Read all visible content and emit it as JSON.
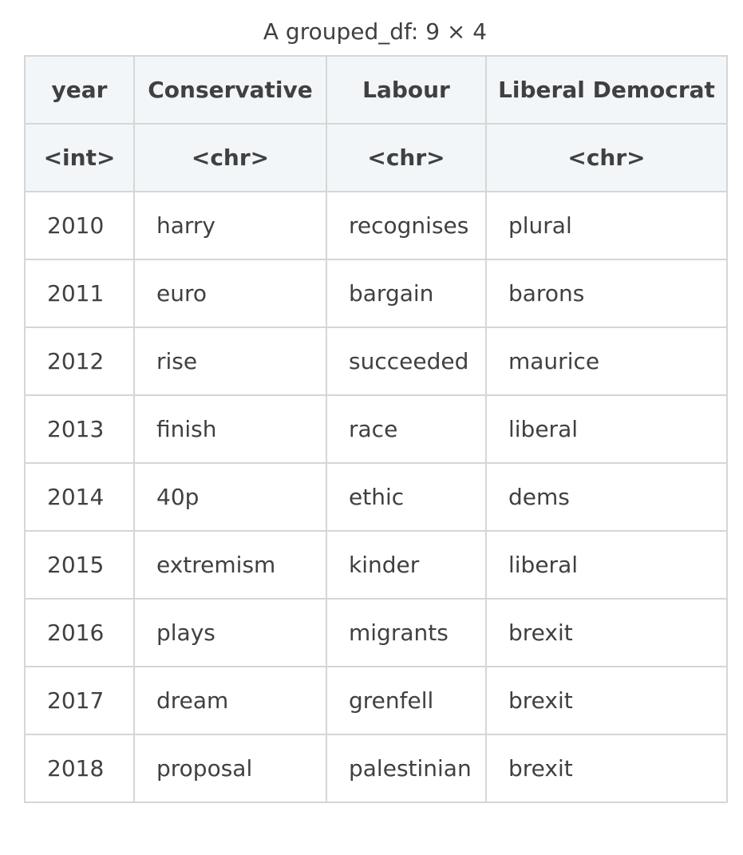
{
  "caption": "A grouped_df: 9 × 4",
  "columns": [
    {
      "name": "year",
      "type": "<int>"
    },
    {
      "name": "Conservative",
      "type": "<chr>"
    },
    {
      "name": "Labour",
      "type": "<chr>"
    },
    {
      "name": "Liberal Democrat",
      "type": "<chr>"
    }
  ],
  "rows": [
    [
      "2010",
      "harry",
      "recognises",
      "plural"
    ],
    [
      "2011",
      "euro",
      "bargain",
      "barons"
    ],
    [
      "2012",
      "rise",
      "succeeded",
      "maurice"
    ],
    [
      "2013",
      "finish",
      "race",
      "liberal"
    ],
    [
      "2014",
      "40p",
      "ethic",
      "dems"
    ],
    [
      "2015",
      "extremism",
      "kinder",
      "liberal"
    ],
    [
      "2016",
      "plays",
      "migrants",
      "brexit"
    ],
    [
      "2017",
      "dream",
      "grenfell",
      "brexit"
    ],
    [
      "2018",
      "proposal",
      "palestinian",
      "brexit"
    ]
  ]
}
